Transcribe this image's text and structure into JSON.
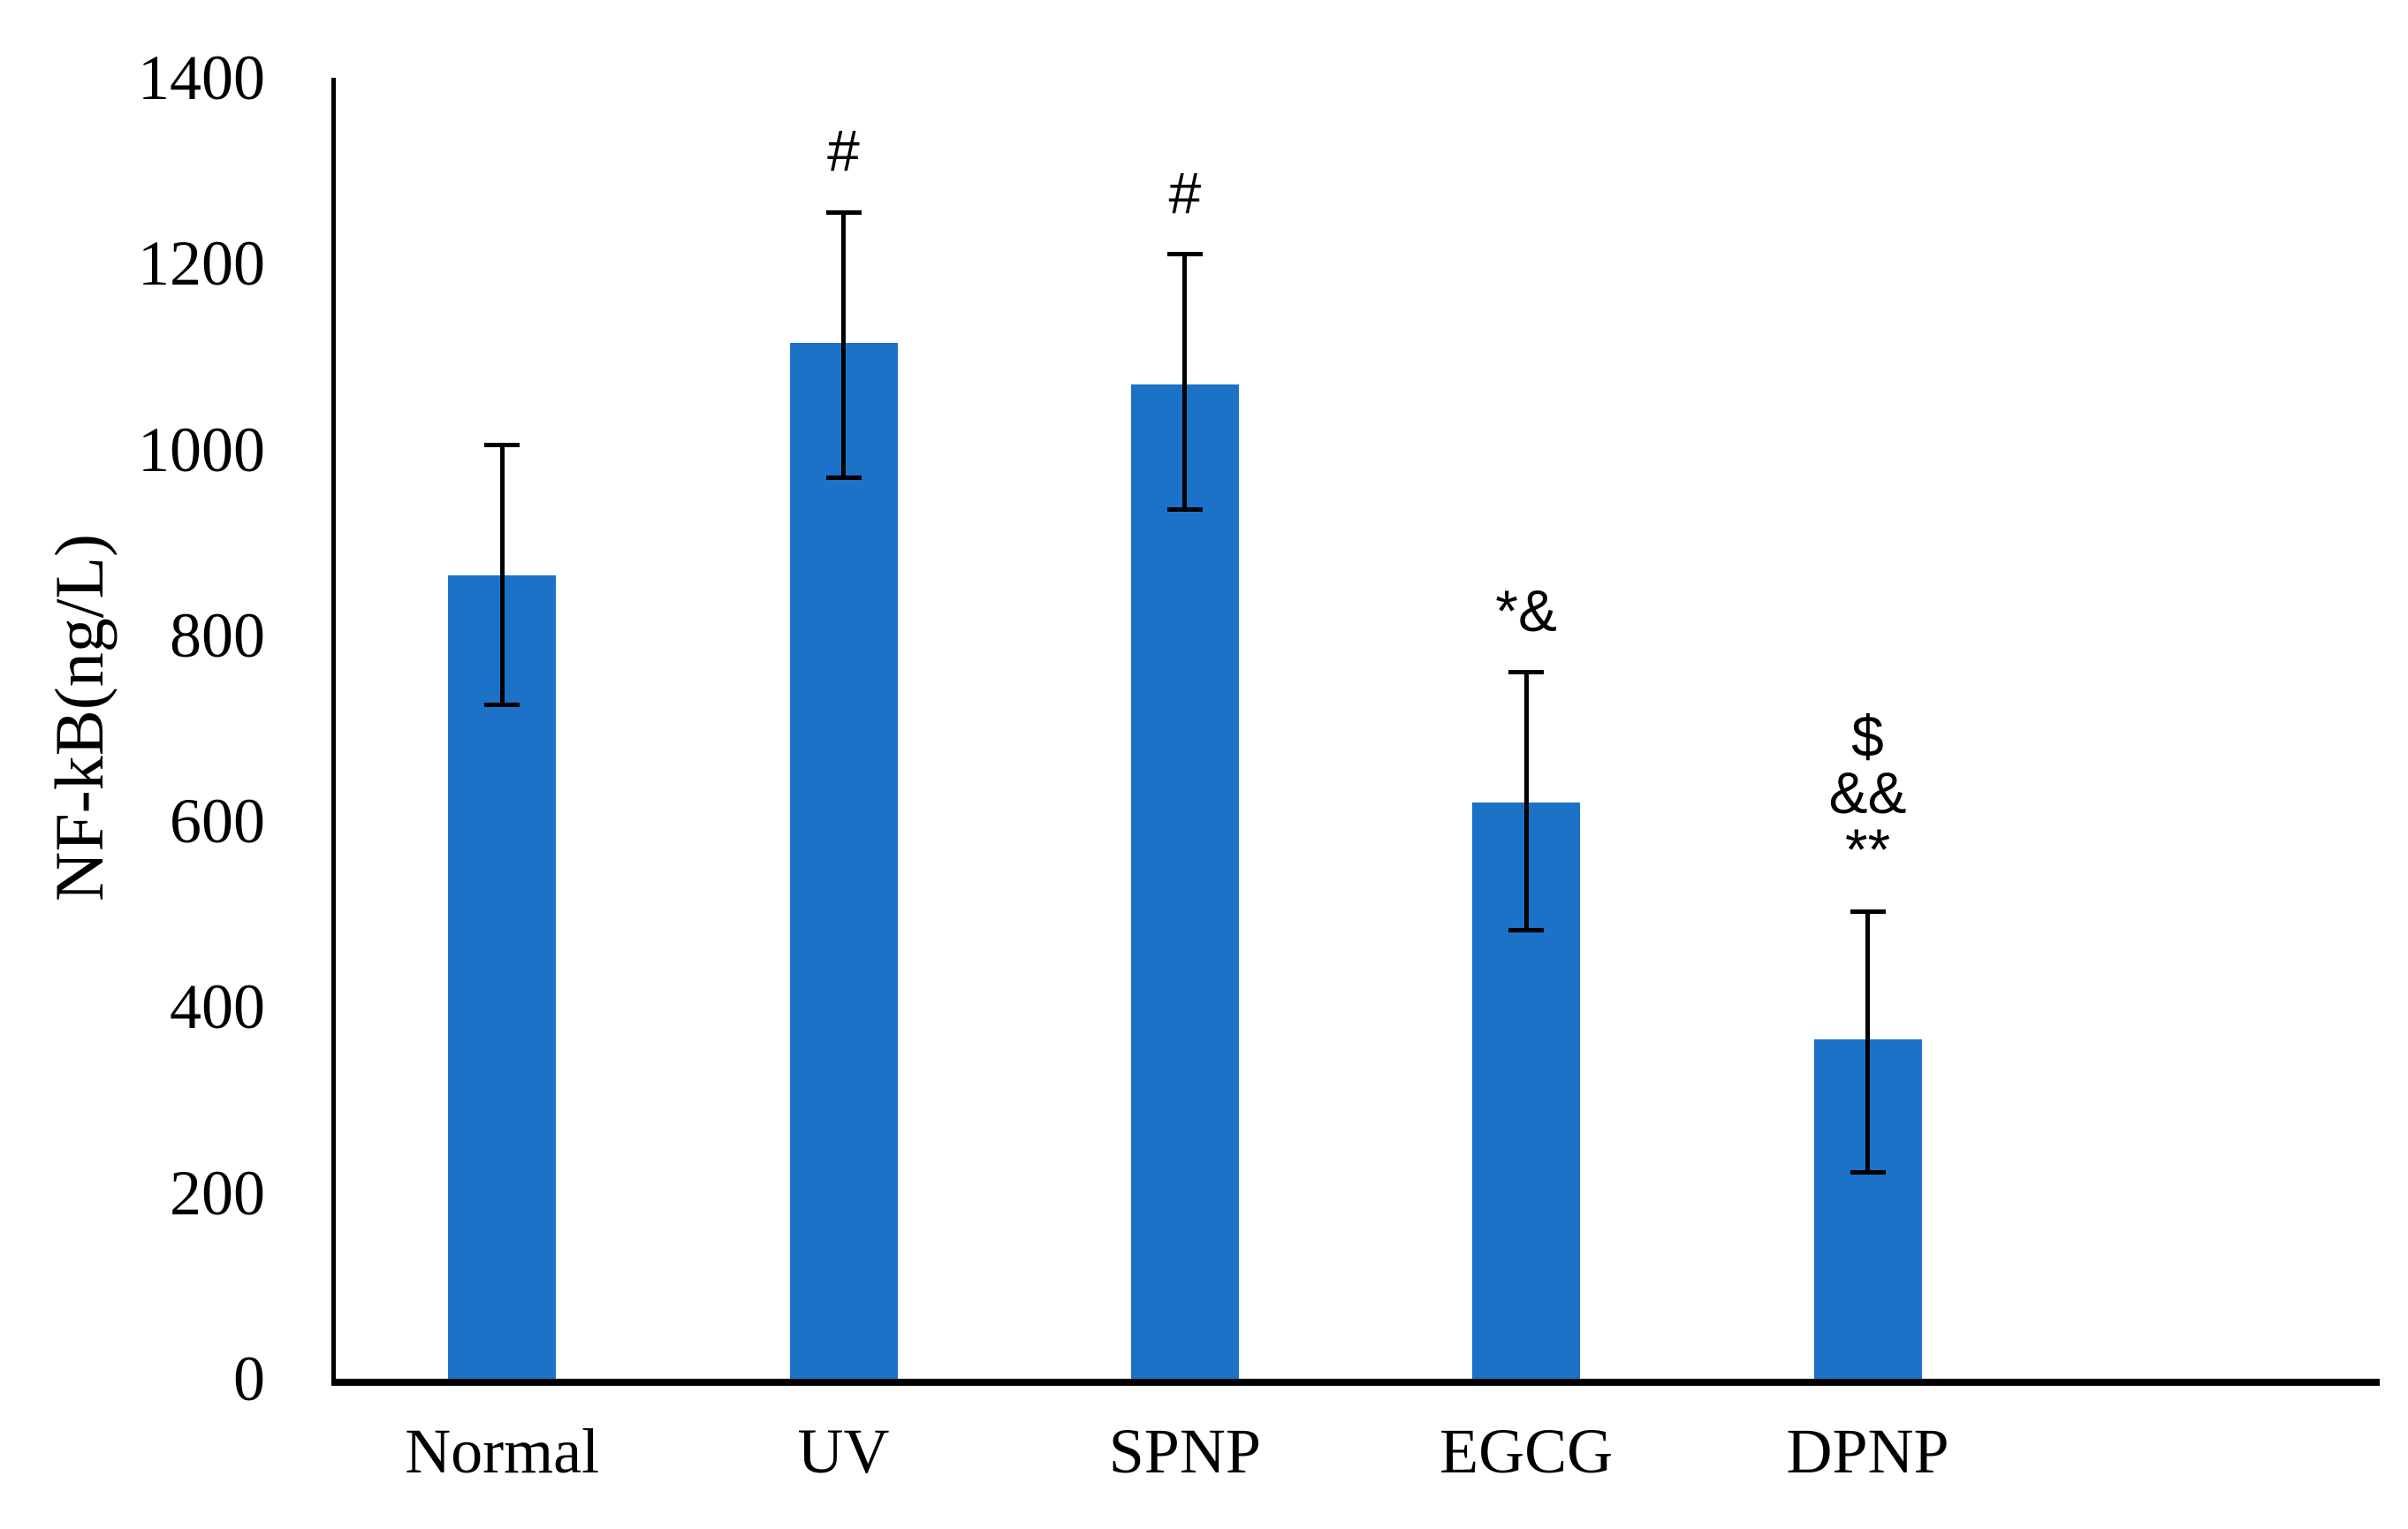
{
  "chart_data": {
    "type": "bar",
    "title": "",
    "ylabel": "NF-kB(ng/L)",
    "xlabel": "",
    "categories": [
      "Normal",
      "UV",
      "SPNP",
      "EGCG",
      "DPNP"
    ],
    "values": [
      865,
      1115,
      1070,
      620,
      365
    ],
    "error_low": [
      725,
      970,
      935,
      483,
      222
    ],
    "error_high": [
      1005,
      1255,
      1210,
      760,
      503
    ],
    "annotations": [
      [],
      [
        "#"
      ],
      [
        "#"
      ],
      [
        "*&"
      ],
      [
        "$",
        "&&",
        "**"
      ]
    ],
    "yticks": [
      0,
      200,
      400,
      600,
      800,
      1000,
      1200,
      1400
    ],
    "ylim": [
      0,
      1400
    ],
    "grid": false,
    "legend": "none",
    "bar_color": "#1B72C7",
    "axis_color": "#000000",
    "text_color": "#000000"
  }
}
